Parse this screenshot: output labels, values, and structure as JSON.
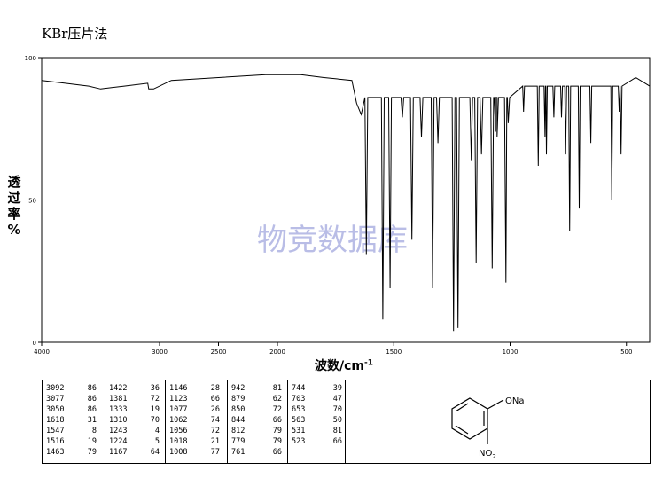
{
  "title": "KBr压片法",
  "watermark": "物竞数据库",
  "chart_data": {
    "type": "line",
    "xlabel": "波数/cm",
    "xlabel_sup": "-1",
    "ylabel": "透过率 %",
    "xlim": [
      4000,
      400
    ],
    "ylim": [
      0,
      100
    ],
    "x_ticks": [
      "4000",
      "3000",
      "2500",
      "2000",
      "1500",
      "1000",
      "500"
    ],
    "y_ticks": [
      "100",
      "50",
      "0"
    ],
    "baseline_points": [
      [
        4000,
        92
      ],
      [
        3800,
        91
      ],
      [
        3600,
        90
      ],
      [
        3500,
        89
      ],
      [
        3300,
        90
      ],
      [
        3100,
        91
      ],
      [
        2900,
        92
      ],
      [
        2500,
        93
      ],
      [
        2100,
        94
      ],
      [
        1900,
        94
      ],
      [
        1800,
        93
      ],
      [
        1680,
        92
      ],
      [
        1660,
        84
      ],
      [
        1640,
        80
      ]
    ],
    "peaks": [
      {
        "x": 3092,
        "t": 86
      },
      {
        "x": 3077,
        "t": 86
      },
      {
        "x": 3050,
        "t": 86
      },
      {
        "x": 1618,
        "t": 31
      },
      {
        "x": 1547,
        "t": 8
      },
      {
        "x": 1516,
        "t": 19
      },
      {
        "x": 1463,
        "t": 79
      },
      {
        "x": 1422,
        "t": 36
      },
      {
        "x": 1381,
        "t": 72
      },
      {
        "x": 1333,
        "t": 19
      },
      {
        "x": 1310,
        "t": 70
      },
      {
        "x": 1243,
        "t": 4
      },
      {
        "x": 1224,
        "t": 5
      },
      {
        "x": 1167,
        "t": 64
      },
      {
        "x": 1146,
        "t": 28
      },
      {
        "x": 1123,
        "t": 66
      },
      {
        "x": 1077,
        "t": 26
      },
      {
        "x": 1062,
        "t": 74
      },
      {
        "x": 1056,
        "t": 72
      },
      {
        "x": 1018,
        "t": 21
      },
      {
        "x": 1008,
        "t": 77
      },
      {
        "x": 942,
        "t": 81
      },
      {
        "x": 879,
        "t": 62
      },
      {
        "x": 850,
        "t": 72
      },
      {
        "x": 844,
        "t": 66
      },
      {
        "x": 812,
        "t": 79
      },
      {
        "x": 779,
        "t": 79
      },
      {
        "x": 761,
        "t": 66
      },
      {
        "x": 744,
        "t": 39
      },
      {
        "x": 703,
        "t": 47
      },
      {
        "x": 653,
        "t": 70
      },
      {
        "x": 563,
        "t": 50
      },
      {
        "x": 531,
        "t": 81
      },
      {
        "x": 523,
        "t": 66
      }
    ]
  },
  "peak_table": [
    [
      [
        "3092",
        "86"
      ],
      [
        "3077",
        "86"
      ],
      [
        "3050",
        "86"
      ],
      [
        "1618",
        "31"
      ],
      [
        "1547",
        "8"
      ],
      [
        "1516",
        "19"
      ],
      [
        "1463",
        "79"
      ]
    ],
    [
      [
        "1422",
        "36"
      ],
      [
        "1381",
        "72"
      ],
      [
        "1333",
        "19"
      ],
      [
        "1310",
        "70"
      ],
      [
        "1243",
        "4"
      ],
      [
        "1224",
        "5"
      ],
      [
        "1167",
        "64"
      ]
    ],
    [
      [
        "1146",
        "28"
      ],
      [
        "1123",
        "66"
      ],
      [
        "1077",
        "26"
      ],
      [
        "1062",
        "74"
      ],
      [
        "1056",
        "72"
      ],
      [
        "1018",
        "21"
      ],
      [
        "1008",
        "77"
      ]
    ],
    [
      [
        "942",
        "81"
      ],
      [
        "879",
        "62"
      ],
      [
        "850",
        "72"
      ],
      [
        "844",
        "66"
      ],
      [
        "812",
        "79"
      ],
      [
        "779",
        "79"
      ],
      [
        "761",
        "66"
      ]
    ],
    [
      [
        "744",
        "39"
      ],
      [
        "703",
        "47"
      ],
      [
        "653",
        "70"
      ],
      [
        "563",
        "50"
      ],
      [
        "531",
        "81"
      ],
      [
        "523",
        "66"
      ]
    ]
  ],
  "structure_labels": {
    "top": "ONa",
    "bottom": "NO",
    "bottom_sub": "2"
  }
}
